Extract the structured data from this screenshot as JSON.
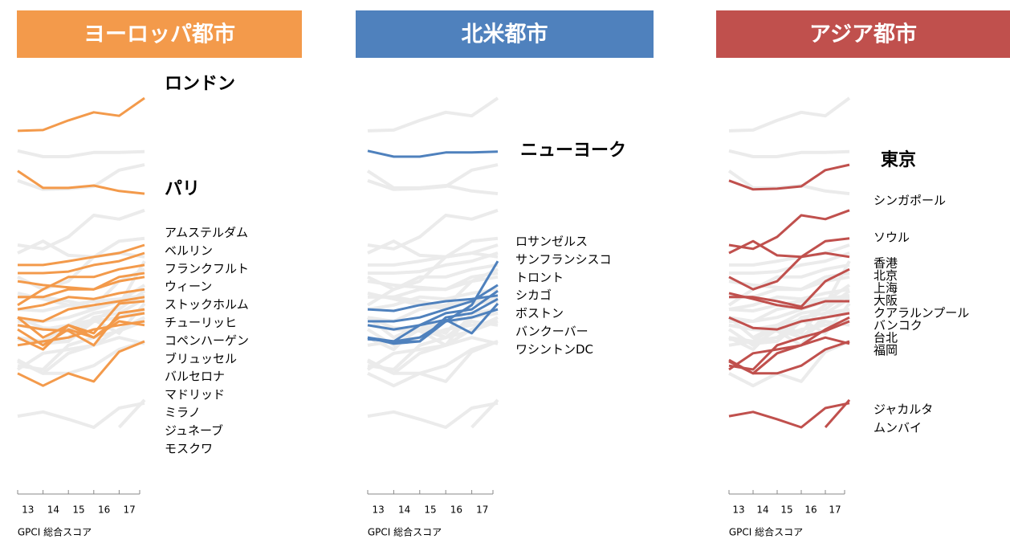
{
  "chart_data": [
    {
      "type": "line",
      "title": "ヨーロッパ都市",
      "color": "#f39a4b",
      "xlabel": "GPCI 総合スコア",
      "x": [
        12.5,
        13.5,
        14.5,
        15.5,
        16.5,
        17.5
      ],
      "xlim": [
        12.5,
        17.5
      ],
      "xticks": [
        13,
        14,
        15,
        16,
        17
      ],
      "ylim": [
        0,
        100
      ],
      "series": [
        {
          "name": "ロンドン",
          "values": [
            86.9,
            87.1,
            89.6,
            91.7,
            90.8,
            95.4
          ]
        },
        {
          "name": "パリ",
          "values": [
            76.5,
            72.1,
            72.1,
            72.7,
            71.3,
            70.6
          ]
        },
        {
          "name": "アムステルダム",
          "values": [
            52.1,
            52.1,
            53.1,
            54.2,
            55.2,
            57.3
          ]
        },
        {
          "name": "ベルリン",
          "values": [
            50,
            50,
            50.4,
            52.1,
            53.1,
            55.2
          ]
        },
        {
          "name": "フランクフルト",
          "values": [
            41.7,
            45.8,
            49,
            49,
            51,
            52.1
          ]
        },
        {
          "name": "ウィーン",
          "values": [
            47.9,
            46.9,
            46.3,
            45.8,
            49,
            50
          ]
        },
        {
          "name": "ストックホルム",
          "values": [
            43.8,
            43.8,
            45.8,
            45.8,
            47.9,
            49
          ]
        },
        {
          "name": "チューリッヒ",
          "values": [
            40.6,
            41.7,
            43.8,
            43.3,
            44.8,
            45.8
          ]
        },
        {
          "name": "コペンハーゲン",
          "values": [
            38.5,
            37.5,
            40.6,
            41.7,
            42.7,
            43.8
          ]
        },
        {
          "name": "ブリュッセル",
          "values": [
            38.5,
            33.3,
            36.5,
            34.4,
            42.1,
            42.7
          ]
        },
        {
          "name": "バルセロナ",
          "values": [
            36.5,
            35.4,
            35,
            31.3,
            39.6,
            40.6
          ]
        },
        {
          "name": "マドリッド",
          "values": [
            35.4,
            31.3,
            35.4,
            33.3,
            38.5,
            39.6
          ]
        },
        {
          "name": "ミラノ",
          "values": [
            31.3,
            32.3,
            33.3,
            35.4,
            36.5,
            37.5
          ]
        },
        {
          "name": "ジュネーブ",
          "values": [
            33.3,
            30.2,
            36.5,
            33.3,
            37.5,
            36.5
          ]
        },
        {
          "name": "モスクワ",
          "values": [
            24,
            20.8,
            24,
            21.9,
            29.6,
            32.3
          ]
        }
      ]
    },
    {
      "type": "line",
      "title": "北米都市",
      "color": "#4f81bd",
      "xlabel": "GPCI 総合スコア",
      "x": [
        12.5,
        13.5,
        14.5,
        15.5,
        16.5,
        17.5
      ],
      "xlim": [
        12.5,
        17.5
      ],
      "xticks": [
        13,
        14,
        15,
        16,
        17
      ],
      "ylim": [
        0,
        100
      ],
      "series": [
        {
          "name": "ニューヨーク",
          "values": [
            81.7,
            80.2,
            80.2,
            81.3,
            81.3,
            81.5
          ]
        },
        {
          "name": "ロサンゼルス",
          "values": [
            40.6,
            40.2,
            41.7,
            42.7,
            43.3,
            44.2
          ]
        },
        {
          "name": "サンフランシスコ",
          "values": [
            33.3,
            32.3,
            32.3,
            37.5,
            41.7,
            53.1
          ]
        },
        {
          "name": "トロント",
          "values": [
            37.5,
            37.5,
            38.5,
            40.6,
            42.7,
            46.9
          ]
        },
        {
          "name": "シカゴ",
          "values": [
            36.5,
            35.4,
            36.5,
            39.6,
            40.6,
            45.4
          ]
        },
        {
          "name": "ボストン",
          "values": [
            33.3,
            31.7,
            32.3,
            38.5,
            39.6,
            43.3
          ]
        },
        {
          "name": "バンクーバー",
          "values": [
            32.9,
            32.3,
            33.3,
            37.5,
            38.5,
            40.6
          ]
        },
        {
          "name": "ワシントンDC",
          "values": [
            32.9,
            32.3,
            36.5,
            37.9,
            34.4,
            42.1
          ]
        }
      ]
    },
    {
      "type": "line",
      "title": "アジア都市",
      "color": "#c0504d",
      "xlabel": "GPCI 総合スコア",
      "x": [
        12.5,
        13.5,
        14.5,
        15.5,
        16.5,
        17.5
      ],
      "xlim": [
        12.5,
        17.5
      ],
      "xticks": [
        13,
        14,
        15,
        16,
        17
      ],
      "ylim": [
        0,
        100
      ],
      "series": [
        {
          "name": "東京",
          "values": [
            74,
            71.7,
            71.9,
            72.5,
            76.7,
            78.1
          ]
        },
        {
          "name": "シンガポール",
          "values": [
            57.3,
            56.3,
            59.4,
            65,
            64,
            66.3
          ]
        },
        {
          "name": "ソウル",
          "values": [
            55.2,
            58.3,
            54.6,
            54.2,
            58.3,
            59
          ]
        },
        {
          "name": "香港",
          "values": [
            49,
            45.8,
            47.9,
            54.2,
            55.2,
            54.2
          ]
        },
        {
          "name": "北京",
          "values": [
            43.8,
            43.8,
            42.7,
            41.3,
            47.9,
            51
          ]
        },
        {
          "name": "上海",
          "values": [
            44.8,
            43.3,
            41.7,
            40.8,
            42.7,
            42.7
          ]
        },
        {
          "name": "大阪",
          "values": [
            38.5,
            35.8,
            35.4,
            37.5,
            38.5,
            39.6
          ]
        },
        {
          "name": "クアラルンプール",
          "values": [
            27.1,
            24,
            29.2,
            31.3,
            35.4,
            38.5
          ]
        },
        {
          "name": "バンコク",
          "values": [
            26,
            25,
            31.3,
            33.3,
            35,
            37.5
          ]
        },
        {
          "name": "台北",
          "values": [
            25,
            29.2,
            30.2,
            31.3,
            33.3,
            31.7
          ]
        },
        {
          "name": "福岡",
          "values": [
            27.5,
            24,
            24,
            26,
            30.2,
            32.3
          ]
        },
        {
          "name": "ジャカルタ",
          "values": [
            12.9,
            14,
            12.1,
            10,
            15,
            16.3
          ]
        },
        {
          "name": "ムンバイ",
          "values": [
            null,
            null,
            null,
            null,
            10,
            17.1
          ]
        }
      ]
    }
  ]
}
